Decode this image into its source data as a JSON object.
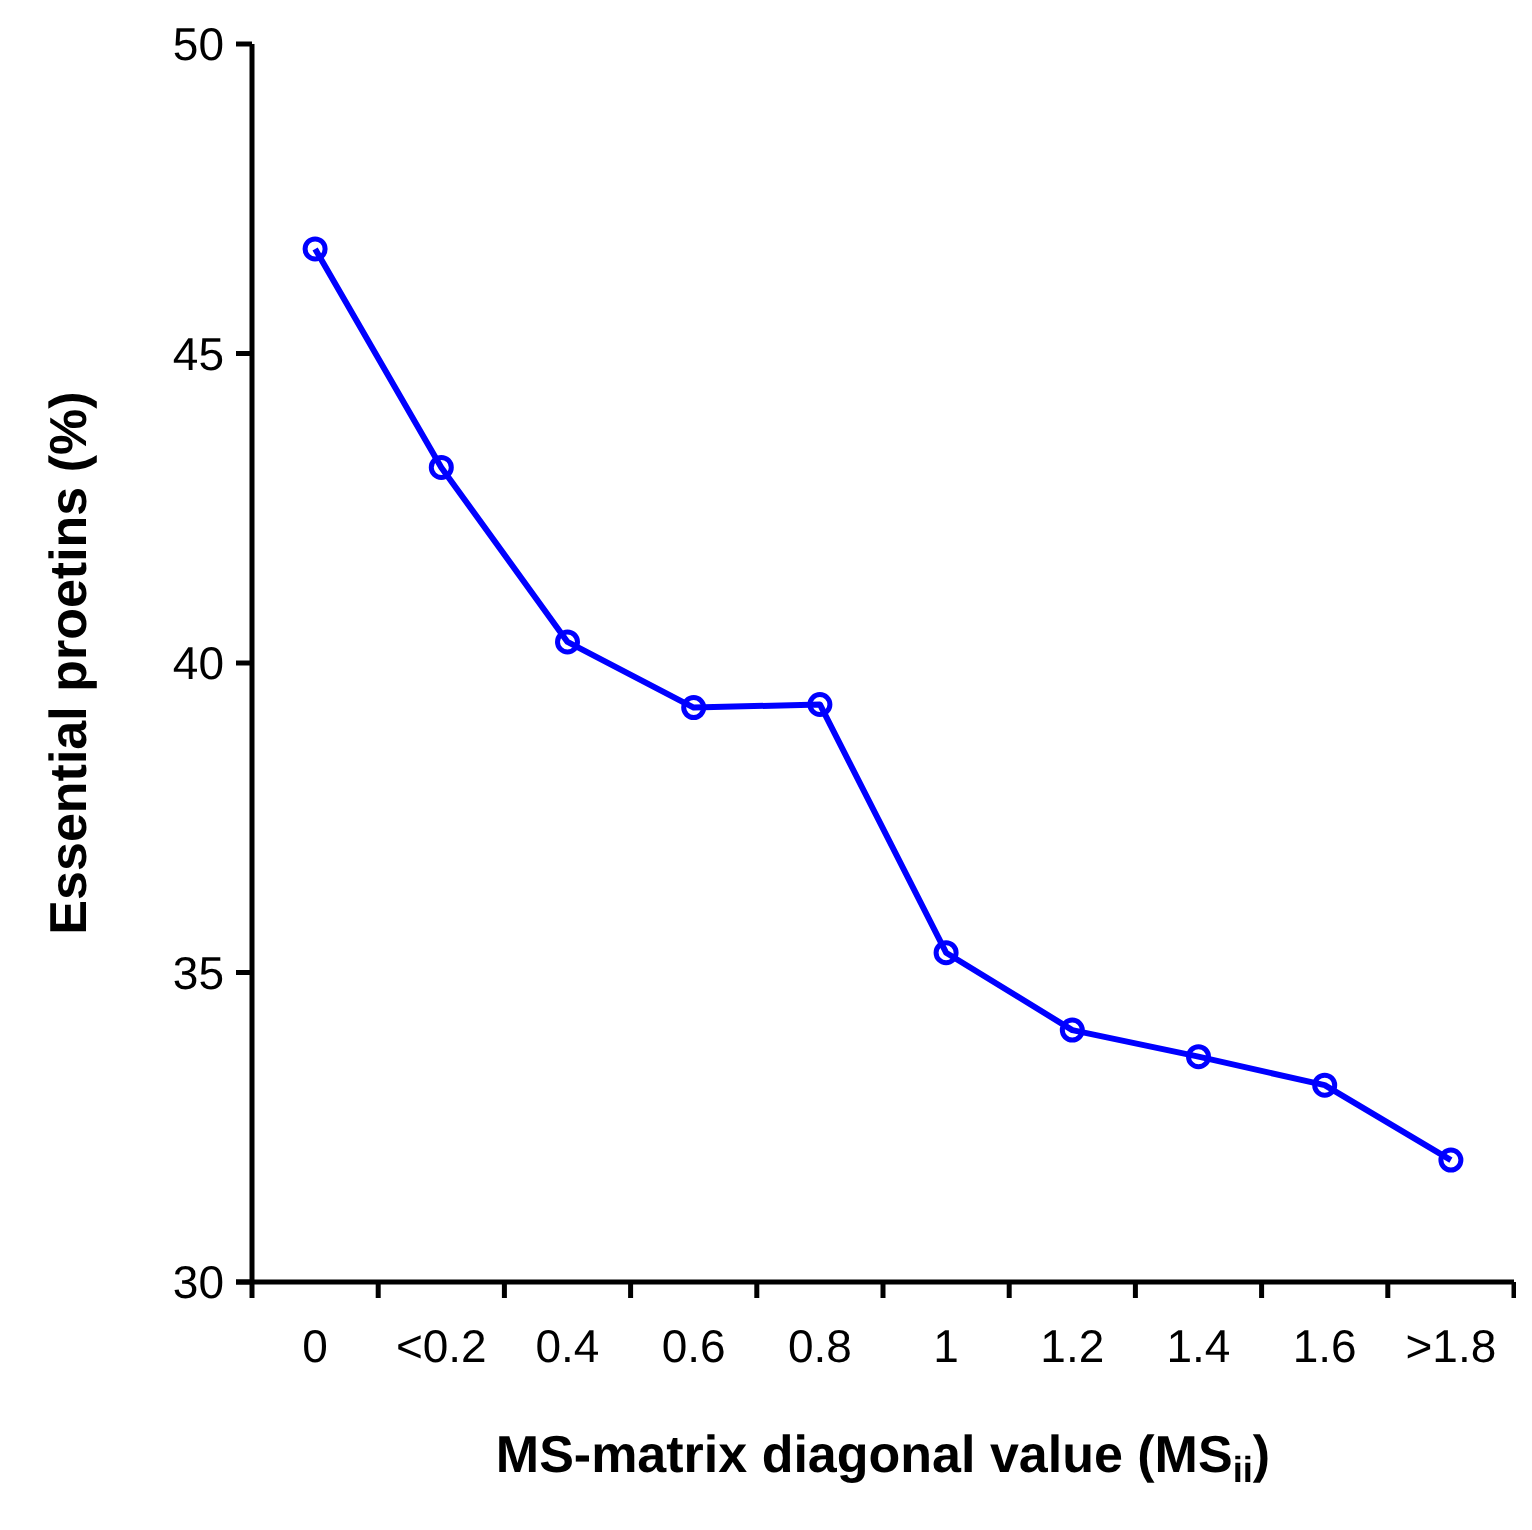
{
  "chart_data": {
    "type": "line",
    "xlabel": "MS-matrix diagonal value (MS$_{ii}$)",
    "ylabel": "Essential proetins (%)",
    "categories": [
      "0",
      "<0.2",
      "0.4",
      "0.6",
      "0.8",
      "1",
      "1.2",
      "1.4",
      "1.6",
      ">1.8"
    ],
    "series": [
      {
        "color": "#0000ff",
        "values": [
          46.69,
          43.16,
          40.34,
          39.28,
          39.33,
          35.32,
          34.07,
          33.64,
          33.18,
          31.97
        ]
      }
    ],
    "ylim": [
      30,
      50
    ],
    "yticks": [
      30,
      35,
      40,
      45,
      50
    ],
    "grid": false,
    "marker": "circle",
    "line_style": "solid"
  }
}
